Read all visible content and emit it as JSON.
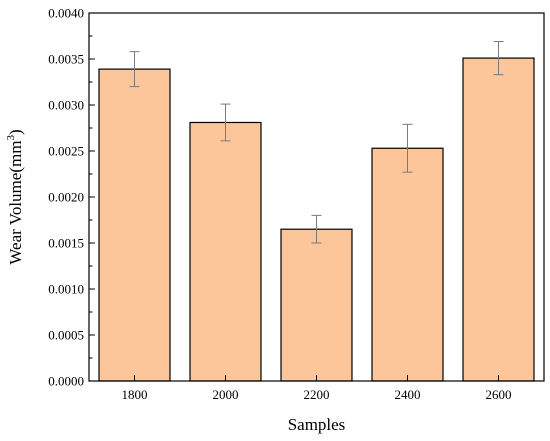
{
  "chart_data": {
    "type": "bar",
    "categories": [
      "1800",
      "2000",
      "2200",
      "2400",
      "2600"
    ],
    "values": [
      0.00339,
      0.00281,
      0.00165,
      0.00253,
      0.00351
    ],
    "error": [
      0.00019,
      0.0002,
      0.00015,
      0.00026,
      0.00018
    ],
    "xlabel": "Samples",
    "ylabel_main": "Wear Volume(mm",
    "ylabel_sup": "3",
    "ylabel_close": ")",
    "ylim": [
      0,
      0.004
    ],
    "yticks": [
      0.0,
      0.0005,
      0.001,
      0.0015,
      0.002,
      0.0025,
      0.003,
      0.0035,
      0.004
    ],
    "ytick_labels": [
      "0.0000",
      "0.0005",
      "0.0010",
      "0.0015",
      "0.0020",
      "0.0025",
      "0.0030",
      "0.0035",
      "0.0040"
    ],
    "grid": false,
    "bar_color": "#FDC59A",
    "bar_edge_color": "#000000",
    "error_color": "#7a7a7a"
  }
}
